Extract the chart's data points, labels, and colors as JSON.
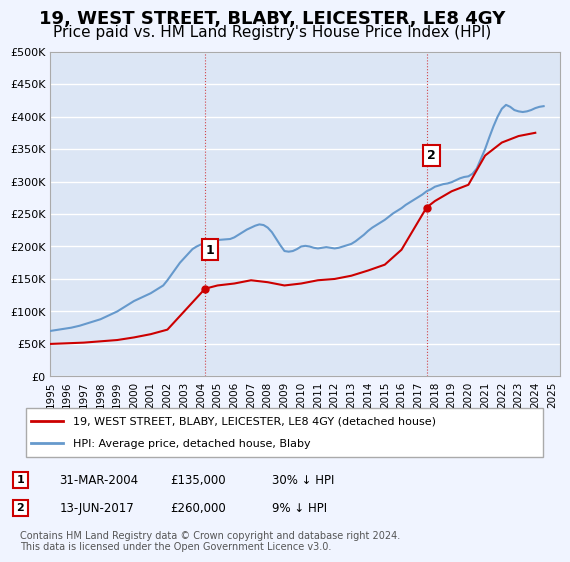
{
  "title": "19, WEST STREET, BLABY, LEICESTER, LE8 4GY",
  "subtitle": "Price paid vs. HM Land Registry's House Price Index (HPI)",
  "title_fontsize": 13,
  "subtitle_fontsize": 11,
  "ylabel_ticks": [
    "£0",
    "£50K",
    "£100K",
    "£150K",
    "£200K",
    "£250K",
    "£300K",
    "£350K",
    "£400K",
    "£450K",
    "£500K"
  ],
  "ytick_vals": [
    0,
    50000,
    100000,
    150000,
    200000,
    250000,
    300000,
    350000,
    400000,
    450000,
    500000
  ],
  "ylim": [
    0,
    500000
  ],
  "xlim_start": 1995.0,
  "xlim_end": 2025.5,
  "background_color": "#f0f4ff",
  "plot_bg_color": "#dce6f5",
  "grid_color": "#ffffff",
  "hpi_color": "#6699cc",
  "price_color": "#cc0000",
  "marker_color": "#cc0000",
  "hpi_x": [
    1995.0,
    1995.25,
    1995.5,
    1995.75,
    1996.0,
    1996.25,
    1996.5,
    1996.75,
    1997.0,
    1997.25,
    1997.5,
    1997.75,
    1998.0,
    1998.25,
    1998.5,
    1998.75,
    1999.0,
    1999.25,
    1999.5,
    1999.75,
    2000.0,
    2000.25,
    2000.5,
    2000.75,
    2001.0,
    2001.25,
    2001.5,
    2001.75,
    2002.0,
    2002.25,
    2002.5,
    2002.75,
    2003.0,
    2003.25,
    2003.5,
    2003.75,
    2004.0,
    2004.25,
    2004.5,
    2004.75,
    2005.0,
    2005.25,
    2005.5,
    2005.75,
    2006.0,
    2006.25,
    2006.5,
    2006.75,
    2007.0,
    2007.25,
    2007.5,
    2007.75,
    2008.0,
    2008.25,
    2008.5,
    2008.75,
    2009.0,
    2009.25,
    2009.5,
    2009.75,
    2010.0,
    2010.25,
    2010.5,
    2010.75,
    2011.0,
    2011.25,
    2011.5,
    2011.75,
    2012.0,
    2012.25,
    2012.5,
    2012.75,
    2013.0,
    2013.25,
    2013.5,
    2013.75,
    2014.0,
    2014.25,
    2014.5,
    2014.75,
    2015.0,
    2015.25,
    2015.5,
    2015.75,
    2016.0,
    2016.25,
    2016.5,
    2016.75,
    2017.0,
    2017.25,
    2017.5,
    2017.75,
    2018.0,
    2018.25,
    2018.5,
    2018.75,
    2019.0,
    2019.25,
    2019.5,
    2019.75,
    2020.0,
    2020.25,
    2020.5,
    2020.75,
    2021.0,
    2021.25,
    2021.5,
    2021.75,
    2022.0,
    2022.25,
    2022.5,
    2022.75,
    2023.0,
    2023.25,
    2023.5,
    2023.75,
    2024.0,
    2024.25,
    2024.5
  ],
  "hpi_y": [
    70000,
    71000,
    72000,
    73000,
    74000,
    75000,
    76500,
    78000,
    80000,
    82000,
    84000,
    86000,
    88000,
    91000,
    94000,
    97000,
    100000,
    104000,
    108000,
    112000,
    116000,
    119000,
    122000,
    125000,
    128000,
    132000,
    136000,
    140000,
    148000,
    157000,
    166000,
    175000,
    182000,
    189000,
    196000,
    200000,
    203000,
    207000,
    209000,
    210000,
    210000,
    210500,
    211000,
    211500,
    214000,
    218000,
    222000,
    226000,
    229000,
    232000,
    234000,
    233000,
    229000,
    222000,
    212000,
    202000,
    193000,
    192000,
    193000,
    196000,
    200000,
    201000,
    200000,
    198000,
    197000,
    198000,
    199000,
    198000,
    197000,
    198000,
    200000,
    202000,
    204000,
    208000,
    213000,
    218000,
    224000,
    229000,
    233000,
    237000,
    241000,
    246000,
    251000,
    255000,
    259000,
    264000,
    268000,
    272000,
    276000,
    280000,
    285000,
    288000,
    292000,
    294000,
    296000,
    297000,
    299000,
    302000,
    305000,
    307000,
    308000,
    312000,
    320000,
    335000,
    350000,
    368000,
    385000,
    400000,
    412000,
    418000,
    415000,
    410000,
    408000,
    407000,
    408000,
    410000,
    413000,
    415000,
    416000
  ],
  "price_x": [
    1995.0,
    1996.0,
    1997.0,
    1998.0,
    1999.0,
    2000.0,
    2001.0,
    2002.0,
    2003.0,
    2004.25,
    2005.0,
    2006.0,
    2007.0,
    2008.0,
    2009.0,
    2010.0,
    2011.0,
    2012.0,
    2013.0,
    2014.0,
    2015.0,
    2016.0,
    2017.5,
    2018.0,
    2019.0,
    2020.0,
    2021.0,
    2022.0,
    2023.0,
    2024.0
  ],
  "price_y": [
    50000,
    51000,
    52000,
    54000,
    56000,
    60000,
    65000,
    72000,
    100000,
    135000,
    140000,
    143000,
    148000,
    145000,
    140000,
    143000,
    148000,
    150000,
    155000,
    163000,
    172000,
    195000,
    260000,
    270000,
    285000,
    295000,
    340000,
    360000,
    370000,
    375000
  ],
  "marker1_x": 2004.25,
  "marker1_y": 135000,
  "marker2_x": 2017.5,
  "marker2_y": 260000,
  "legend_label_price": "19, WEST STREET, BLABY, LEICESTER, LE8 4GY (detached house)",
  "legend_label_hpi": "HPI: Average price, detached house, Blaby",
  "table_rows": [
    {
      "num": "1",
      "date": "31-MAR-2004",
      "price": "£135,000",
      "hpi": "30% ↓ HPI"
    },
    {
      "num": "2",
      "date": "13-JUN-2017",
      "price": "£260,000",
      "hpi": "9% ↓ HPI"
    }
  ],
  "footnote": "Contains HM Land Registry data © Crown copyright and database right 2024.\nThis data is licensed under the Open Government Licence v3.0.",
  "xtick_years": [
    1995,
    1996,
    1997,
    1998,
    1999,
    2000,
    2001,
    2002,
    2003,
    2004,
    2005,
    2006,
    2007,
    2008,
    2009,
    2010,
    2011,
    2012,
    2013,
    2014,
    2015,
    2016,
    2017,
    2018,
    2019,
    2020,
    2021,
    2022,
    2023,
    2024,
    2025
  ]
}
